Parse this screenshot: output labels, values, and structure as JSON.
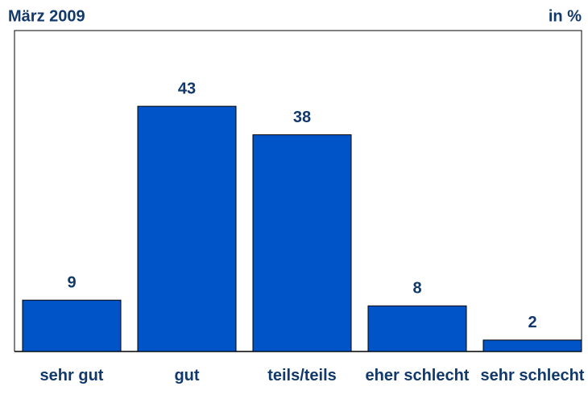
{
  "chart_data": {
    "type": "bar",
    "title": "März 2009",
    "unit_label": "in %",
    "categories": [
      "sehr gut",
      "gut",
      "teils/teils",
      "eher schlecht",
      "sehr schlecht"
    ],
    "values": [
      9,
      43,
      38,
      8,
      2
    ],
    "color": "#0054c8"
  }
}
